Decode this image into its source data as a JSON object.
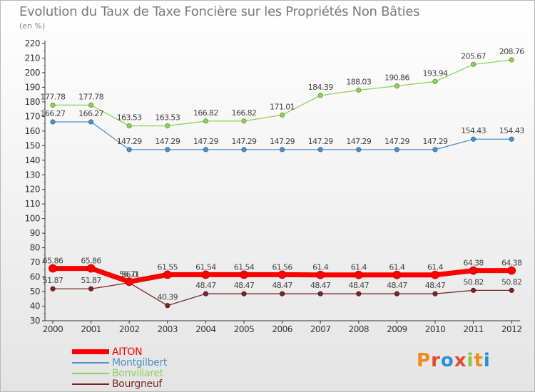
{
  "title": "Evolution du Taux de Taxe Foncière sur les Propriétés Non Bâties",
  "subtitle": "(en %)",
  "logo": "Proxiti",
  "chart_data": {
    "type": "line",
    "title": "Evolution du Taux de Taxe Foncière sur les Propriétés Non Bâties",
    "ylabel": "(en %)",
    "xlabel": "",
    "x": [
      "2000",
      "2001",
      "2002",
      "2003",
      "2004",
      "2005",
      "2006",
      "2007",
      "2008",
      "2009",
      "2010",
      "2011",
      "2012"
    ],
    "ylim": [
      30,
      220
    ],
    "yticks": [
      30,
      40,
      50,
      60,
      70,
      80,
      90,
      100,
      110,
      120,
      130,
      140,
      150,
      160,
      170,
      180,
      190,
      200,
      210,
      220
    ],
    "grid": false,
    "legend_position": "bottom-left",
    "series": [
      {
        "name": "AITON",
        "color": "#ff0000",
        "values": [
          65.86,
          65.86,
          56.71,
          61.55,
          61.54,
          61.54,
          61.56,
          61.4,
          61.4,
          61.4,
          61.4,
          64.38,
          64.38
        ],
        "labels": [
          "65.86",
          "65.86",
          "56.71",
          "61.55",
          "61.54",
          "61.54",
          "61.56",
          "61.4",
          "61.4",
          "61.4",
          "61.4",
          "64.38",
          "64.38"
        ]
      },
      {
        "name": "Montgilbert",
        "color": "#4f90c6",
        "values": [
          166.27,
          166.27,
          147.29,
          147.29,
          147.29,
          147.29,
          147.29,
          147.29,
          147.29,
          147.29,
          147.29,
          154.43,
          154.43
        ],
        "labels": [
          "166.27",
          "166.27",
          "147.29",
          "147.29",
          "147.29",
          "147.29",
          "147.29",
          "147.29",
          "147.29",
          "147.29",
          "147.29",
          "154.43",
          "154.43"
        ]
      },
      {
        "name": "Bonvillaret",
        "color": "#8ed05a",
        "values": [
          177.78,
          177.78,
          163.53,
          163.53,
          166.82,
          166.82,
          171.01,
          184.39,
          188.03,
          190.86,
          193.94,
          205.67,
          208.76
        ],
        "labels": [
          "177.78",
          "177.78",
          "163.53",
          "163.53",
          "166.82",
          "166.82",
          "171.01",
          "184.39",
          "188.03",
          "190.86",
          "193.94",
          "205.67",
          "208.76"
        ]
      },
      {
        "name": "Bourgneuf",
        "color": "#7a2626",
        "values": [
          51.87,
          51.87,
          56.0,
          40.39,
          48.47,
          48.47,
          48.47,
          48.47,
          48.47,
          48.47,
          48.47,
          50.82,
          50.82
        ],
        "labels": [
          "51.87",
          "51.87",
          "56.0",
          "40.39",
          "48.47",
          "48.47",
          "48.47",
          "48.47",
          "48.47",
          "48.47",
          "48.47",
          "50.82",
          "50.82"
        ]
      }
    ]
  }
}
